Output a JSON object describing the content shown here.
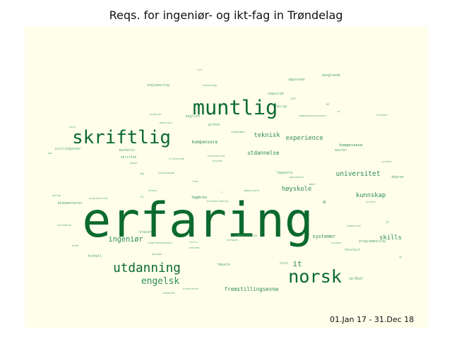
{
  "chart_data": {
    "type": "wordcloud",
    "title": "Reqs. for ingeniør- og ikt-fag in Trøndelag",
    "annotation": "01.Jan 17 - 31.Dec 18",
    "colors": {
      "background": "#fefeeb",
      "word_dark": "#0b6a2e",
      "word_mid": "#2e8b57",
      "word_light": "#5aa870"
    },
    "words": [
      {
        "text": "erfaring",
        "weight": 100
      },
      {
        "text": "muntlig",
        "weight": 42
      },
      {
        "text": "skriftlig",
        "weight": 38
      },
      {
        "text": "norsk",
        "weight": 37
      },
      {
        "text": "utdanning",
        "weight": 26
      },
      {
        "text": "engelsk",
        "weight": 19
      },
      {
        "text": "it",
        "weight": 16
      },
      {
        "text": "ingeniør",
        "weight": 15
      },
      {
        "text": "universitet",
        "weight": 14
      },
      {
        "text": "høyskole",
        "weight": 13
      },
      {
        "text": "kunnskap",
        "weight": 13
      },
      {
        "text": "skills",
        "weight": 13
      },
      {
        "text": "experience",
        "weight": 13
      },
      {
        "text": "teknisk",
        "weight": 13
      },
      {
        "text": "fremstillingsevne",
        "weight": 11
      },
      {
        "text": "utdannelse",
        "weight": 11
      },
      {
        "text": "systemer",
        "weight": 10
      },
      {
        "text": "kompensere",
        "weight": 9
      },
      {
        "text": "fagbrev",
        "weight": 8
      },
      {
        "text": "kompetanse",
        "weight": 8
      },
      {
        "text": "a",
        "weight": 10
      },
      {
        "text": "engineering",
        "weight": 7
      },
      {
        "text": "english",
        "weight": 7
      },
      {
        "text": "required",
        "weight": 7
      },
      {
        "text": "approved",
        "weight": 7
      },
      {
        "text": "manglende",
        "weight": 7
      },
      {
        "text": "within",
        "weight": 7
      },
      {
        "text": "bachelor",
        "weight": 7
      },
      {
        "text": "skritten",
        "weight": 7
      },
      {
        "text": "sivilingeniør",
        "weight": 7
      },
      {
        "text": "master",
        "weight": 7
      },
      {
        "text": "dokumenteres",
        "weight": 7
      },
      {
        "text": "kravet",
        "weight": 7
      },
      {
        "text": "formell",
        "weight": 7
      },
      {
        "text": "høyere",
        "weight": 7
      },
      {
        "text": "språket",
        "weight": 7
      },
      {
        "text": "programmering",
        "weight": 7
      },
      {
        "text": "fagskole",
        "weight": 7
      },
      {
        "text": "degree",
        "weight": 7
      },
      {
        "text": "design",
        "weight": 6
      },
      {
        "text": "are",
        "weight": 6
      },
      {
        "text": "on",
        "weight": 6
      },
      {
        "text": "tests",
        "weight": 6
      },
      {
        "text": "is",
        "weight": 6
      },
      {
        "text": "færerkort",
        "weight": 6
      },
      {
        "text": "communication",
        "weight": 6
      },
      {
        "text": "technology",
        "weight": 5
      },
      {
        "text": "kommunikasjonsevner",
        "weight": 5
      },
      {
        "text": "relevant",
        "weight": 5
      },
      {
        "text": "praktisk",
        "weight": 5
      },
      {
        "text": "materials",
        "weight": 5
      },
      {
        "text": "fagområder",
        "weight": 5
      },
      {
        "text": "forutsetning",
        "weight": 5
      },
      {
        "text": "tilsvarende",
        "weight": 5
      },
      {
        "text": "teknologiam",
        "weight": 5
      },
      {
        "text": "equivalent",
        "weight": 5
      },
      {
        "text": "javascript",
        "weight": 5
      },
      {
        "text": "science",
        "weight": 5
      },
      {
        "text": "elektronikk",
        "weight": 5
      },
      {
        "text": "sikkerhet",
        "weight": 5
      },
      {
        "text": "diploma",
        "weight": 5
      },
      {
        "text": "prosjektledelse",
        "weight": 5
      },
      {
        "text": "engelskkunnskaper",
        "weight": 5
      },
      {
        "text": "software",
        "weight": 5
      },
      {
        "text": "kommunisere",
        "weight": 5
      },
      {
        "text": "project",
        "weight": 5
      },
      {
        "text": "prosjektering",
        "weight": 5
      },
      {
        "text": "forståelse",
        "weight": 5
      },
      {
        "text": "tvfi",
        "weight": 4
      },
      {
        "text": "flere",
        "weight": 4
      },
      {
        "text": "arbeid",
        "weight": 4
      },
      {
        "text": "skills",
        "weight": 4
      },
      {
        "text": "tegnet",
        "weight": 4
      },
      {
        "text": "frem",
        "weight": 4
      },
      {
        "text": "søker",
        "weight": 4
      },
      {
        "text": "mellom",
        "weight": 4
      },
      {
        "text": "bredt",
        "weight": 4
      },
      {
        "text": "deg",
        "weight": 4
      },
      {
        "text": "bok",
        "weight": 4
      },
      {
        "text": "produkt",
        "weight": 4
      },
      {
        "text": "musiken",
        "weight": 4
      },
      {
        "text": "arbeidet",
        "weight": 4
      },
      {
        "text": "s",
        "weight": 3
      },
      {
        "text": "ev",
        "weight": 3
      },
      {
        "text": "ca",
        "weight": 3
      },
      {
        "text": "sg",
        "weight": 3
      },
      {
        "text": "c",
        "weight": 3
      }
    ]
  }
}
